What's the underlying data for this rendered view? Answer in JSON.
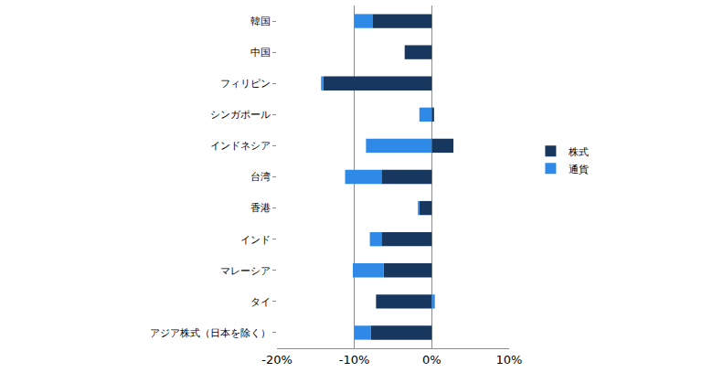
{
  "chart_data": {
    "type": "bar",
    "orientation": "horizontal",
    "stacked": true,
    "categories": [
      "韓国",
      "中国",
      "フィリピン",
      "シンガポール",
      "インドネシア",
      "台湾",
      "香港",
      "インド",
      "マレーシア",
      "タイ",
      "アジア株式（日本を除く）"
    ],
    "series": [
      {
        "name": "株式",
        "color": "#17375e",
        "values": [
          -7.6,
          -3.5,
          -14.0,
          0.3,
          2.8,
          -6.5,
          -1.6,
          -6.5,
          -6.2,
          -7.2,
          -7.9
        ]
      },
      {
        "name": "通貨",
        "color": "#2e8ae6",
        "values": [
          -2.4,
          0,
          -0.3,
          -1.6,
          -8.5,
          -4.7,
          -0.2,
          -1.5,
          -4.0,
          0.4,
          -2.1
        ]
      }
    ],
    "xlim": [
      -20,
      10
    ],
    "xticks": [
      {
        "value": -20,
        "label": "-20%"
      },
      {
        "value": -10,
        "label": "-10%"
      },
      {
        "value": 0,
        "label": "0%"
      },
      {
        "value": 10,
        "label": "10%"
      }
    ],
    "grid": true,
    "legend": "right"
  }
}
